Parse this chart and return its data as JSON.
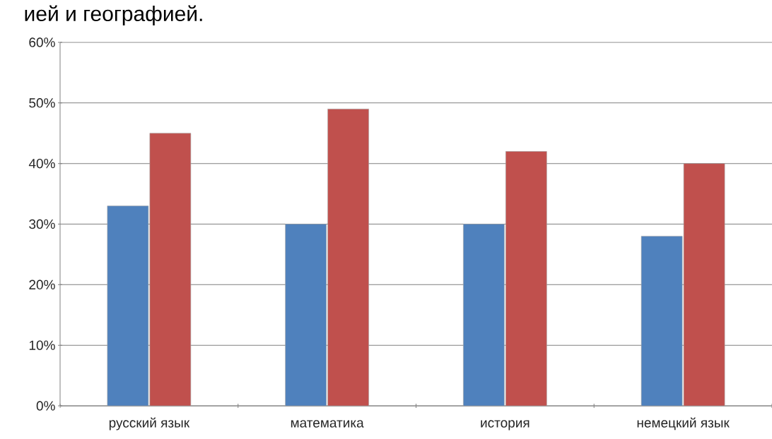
{
  "chart_data": {
    "type": "bar",
    "title": "ией и географией.",
    "categories": [
      "русский язык",
      "математика",
      "история",
      "немецкий язык"
    ],
    "series": [
      {
        "color": "#4f81bd",
        "values": [
          33,
          30,
          30,
          28
        ]
      },
      {
        "color": "#c0504d",
        "values": [
          45,
          49,
          42,
          40
        ]
      }
    ],
    "ylim": [
      0,
      60
    ],
    "yticks": [
      {
        "value": 0,
        "label": "0%"
      },
      {
        "value": 10,
        "label": "10%"
      },
      {
        "value": 20,
        "label": "20%"
      },
      {
        "value": 30,
        "label": "30%"
      },
      {
        "value": 40,
        "label": "40%"
      },
      {
        "value": 50,
        "label": "50%"
      },
      {
        "value": 60,
        "label": "60%"
      }
    ],
    "grid": "y"
  }
}
